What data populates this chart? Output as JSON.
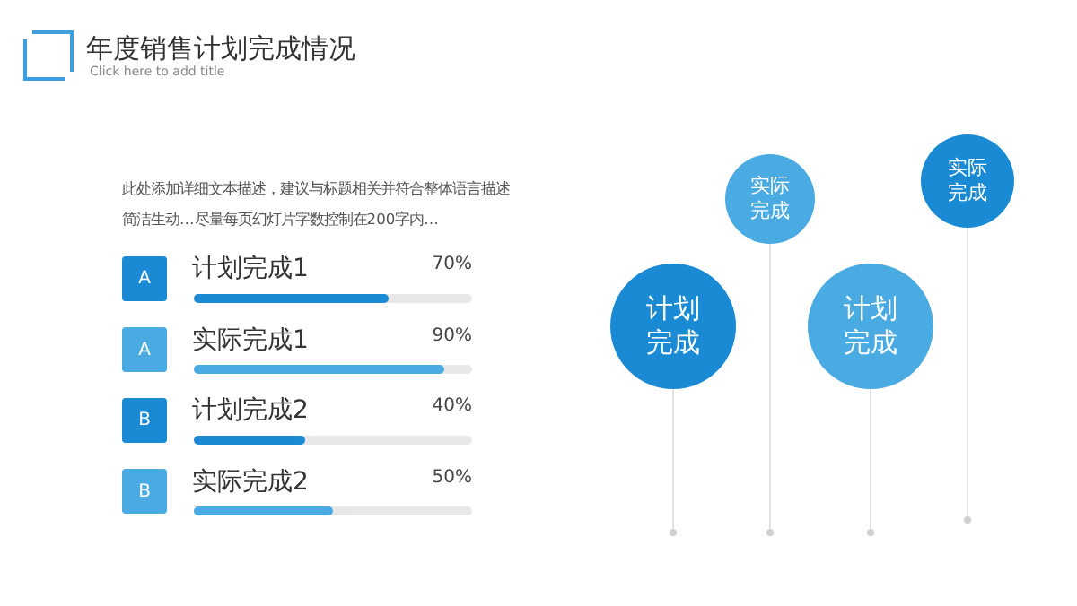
{
  "chart_data": [
    {
      "type": "bar",
      "orientation": "horizontal",
      "title": "年度销售计划完成情况",
      "subtitle": "Click here to add title",
      "categories": [
        "计划完成1",
        "实际完成1",
        "计划完成2",
        "实际完成2"
      ],
      "values": [
        70,
        90,
        40,
        50
      ],
      "value_labels": [
        "70%",
        "90%",
        "40%",
        "50%"
      ],
      "colors": [
        "#1a8ad4",
        "#4aaae2",
        "#1a8ad4",
        "#4aaae2"
      ],
      "xlim": [
        0,
        100
      ],
      "annotations": [
        "此处添加详细文本描述，建议与标题相关并符合整体语言描述简洁生动…尽量每页幻灯片字数控制在200字内…",
        "A",
        "A",
        "B",
        "B"
      ]
    },
    {
      "type": "other",
      "annotations": [
        "计划完成",
        "实际完成",
        "计划完成",
        "实际完成"
      ],
      "colors": [
        "#1a8ad4",
        "#4aaae2",
        "#4aaae2",
        "#1a8ad4"
      ]
    }
  ]
}
